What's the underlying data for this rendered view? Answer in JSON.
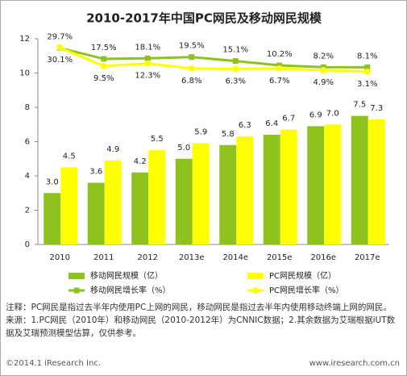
{
  "chart_data": {
    "type": "bar",
    "title": "2010-2017年中国PC网民及移动网民规模",
    "categories": [
      "2010",
      "2011",
      "2012",
      "2013e",
      "2014e",
      "2015e",
      "2016e",
      "2017e"
    ],
    "ylim": [
      0,
      12
    ],
    "yticks": [
      0,
      2,
      4,
      6,
      8,
      10,
      12
    ],
    "y2lim": [
      -190,
      40
    ],
    "series": [
      {
        "name": "移动网民规模（亿）",
        "color": "#8dc21f",
        "values": [
          3.0,
          3.6,
          4.2,
          5.0,
          5.8,
          6.4,
          6.9,
          7.5
        ],
        "value_labels": [
          "3.0",
          "3.6",
          "4.2",
          "5.0",
          "5.8",
          "6.4",
          "6.9",
          "7.5"
        ]
      },
      {
        "name": "PC网民规模（亿）",
        "color": "#ffff00",
        "values": [
          4.5,
          4.9,
          5.5,
          5.9,
          6.3,
          6.7,
          7.0,
          7.3
        ],
        "value_labels": [
          "4.5",
          "4.9",
          "5.5",
          "5.9",
          "6.3",
          "6.7",
          "7.0",
          "7.3"
        ]
      },
      {
        "name": "移动网民增长率（%）",
        "color": "#8dc21f",
        "type": "line",
        "axis": "y2",
        "values": [
          29.7,
          17.5,
          18.1,
          19.5,
          15.1,
          10.2,
          8.2,
          8.1
        ],
        "value_labels": [
          "29.7%",
          "17.5%",
          "18.1%",
          "19.5%",
          "15.1%",
          "10.2%",
          "8.2%",
          "8.1%"
        ]
      },
      {
        "name": "PC网民增长率（%）",
        "color": "#ffff00",
        "type": "line",
        "axis": "y2",
        "values": [
          30.1,
          9.5,
          12.3,
          6.8,
          6.3,
          6.7,
          4.9,
          3.1
        ],
        "value_labels": [
          "30.1%",
          "9.5%",
          "12.3%",
          "6.8%",
          "6.3%",
          "6.7%",
          "4.9%",
          "3.1%"
        ]
      }
    ]
  },
  "notes": [
    "注释：PC网民是指过去半年内使用PC上网的网民，移动网民是指过去半年内使用移动终端上网的网民。",
    "来源：1.PC网民（2010年）和移动网民（2010-2012年）为CNNIC数据；2.其余数据为艾瑞根据iUT数据及艾瑞预测模型估算，仅供参考。"
  ],
  "footer": {
    "left": "©2014.1 iResearch Inc.",
    "right": "www.iresearch.com.cn"
  }
}
